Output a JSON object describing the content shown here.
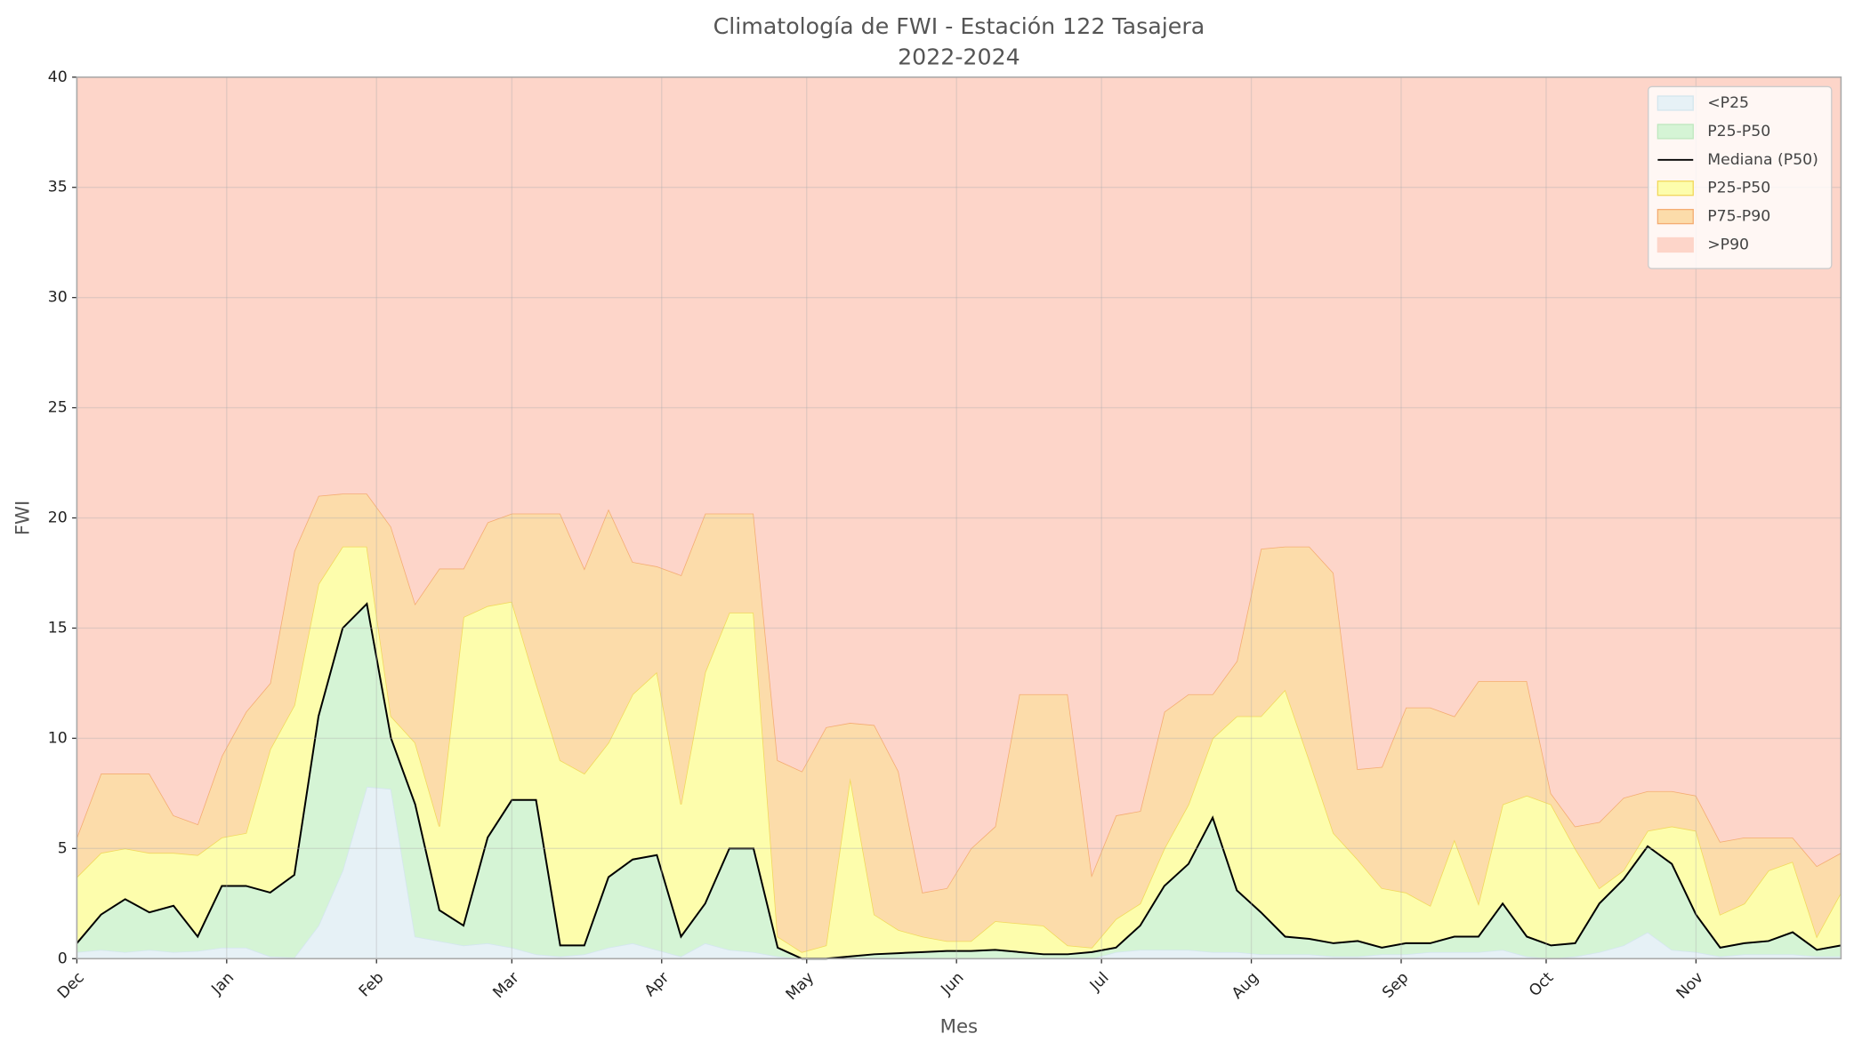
{
  "chart_data": {
    "type": "area",
    "title": "Climatología de FWI - Estación 122 Tasajera",
    "subtitle": "2022-2024",
    "x_label": "Mes",
    "y_label": "FWI",
    "x": [
      0,
      5,
      10,
      15,
      20,
      25,
      30,
      35,
      40,
      45,
      50,
      55,
      60,
      65,
      70,
      75,
      80,
      85,
      90,
      95,
      100,
      105,
      110,
      115,
      120,
      125,
      130,
      135,
      140,
      145,
      150,
      155,
      160,
      165,
      170,
      175,
      180,
      185,
      190,
      195,
      200,
      205,
      210,
      215,
      220,
      225,
      230,
      235,
      240,
      245,
      250,
      255,
      260,
      265,
      270,
      275,
      280,
      285,
      290,
      295,
      300,
      305,
      310,
      315,
      320,
      325,
      330,
      335,
      340,
      345,
      350,
      355,
      360,
      365
    ],
    "xlim": [
      0,
      365
    ],
    "xticks": [
      {
        "value": 0,
        "label": "Dec"
      },
      {
        "value": 31,
        "label": "Jan"
      },
      {
        "value": 62,
        "label": "Feb"
      },
      {
        "value": 90,
        "label": "Mar"
      },
      {
        "value": 121,
        "label": "Apr"
      },
      {
        "value": 151,
        "label": "May"
      },
      {
        "value": 182,
        "label": "Jun"
      },
      {
        "value": 212,
        "label": "Jul"
      },
      {
        "value": 243,
        "label": "Aug"
      },
      {
        "value": 274,
        "label": "Sep"
      },
      {
        "value": 304,
        "label": "Oct"
      },
      {
        "value": 335,
        "label": "Nov"
      }
    ],
    "ylim": [
      0,
      40
    ],
    "yticks": [
      0,
      5,
      10,
      15,
      20,
      25,
      30,
      35,
      40
    ],
    "grid": true,
    "legend": "upper right",
    "series": [
      {
        "name": "<P25",
        "kind": "area",
        "color": "#e6f1f6",
        "edge": "#d4e6ee",
        "values": [
          0.3,
          0.4,
          0.3,
          0.4,
          0.3,
          0.35,
          0.5,
          0.5,
          0.1,
          0.05,
          1.5,
          4.0,
          7.8,
          7.7,
          1.0,
          0.8,
          0.6,
          0.7,
          0.5,
          0.2,
          0.1,
          0.2,
          0.5,
          0.7,
          0.4,
          0.1,
          0.7,
          0.4,
          0.3,
          0.1,
          0,
          0,
          0,
          0,
          0,
          0,
          0,
          0,
          0,
          0,
          0,
          0,
          0,
          0.3,
          0.4,
          0.4,
          0.4,
          0.3,
          0.3,
          0.2,
          0.2,
          0.2,
          0.1,
          0.1,
          0.2,
          0.2,
          0.3,
          0.3,
          0.3,
          0.4,
          0.1,
          0,
          0.1,
          0.3,
          0.6,
          1.2,
          0.4,
          0.3,
          0.1,
          0.2,
          0.2,
          0.2,
          0.1,
          0.1
        ]
      },
      {
        "name": "P25-P50",
        "kind": "area",
        "color": "#d5f4d5",
        "edge": "#bfe8bf",
        "values": [
          0.7,
          2.0,
          2.7,
          2.1,
          2.4,
          1.0,
          3.3,
          3.3,
          3.0,
          3.8,
          11.0,
          15.0,
          16.1,
          10.0,
          7.0,
          2.2,
          1.5,
          5.5,
          7.2,
          7.2,
          0.6,
          0.6,
          3.7,
          4.5,
          4.7,
          1.0,
          2.5,
          5.0,
          5.0,
          0.5,
          0,
          0,
          0.1,
          0.2,
          0.25,
          0.3,
          0.35,
          0.35,
          0.4,
          0.3,
          0.2,
          0.2,
          0.3,
          0.5,
          1.5,
          3.3,
          4.3,
          6.4,
          3.1,
          2.1,
          1.0,
          0.9,
          0.7,
          0.8,
          0.5,
          0.7,
          0.7,
          1.0,
          1.0,
          2.5,
          1.0,
          0.6,
          0.7,
          2.5,
          3.6,
          5.1,
          4.3,
          2.0,
          0.5,
          0.7,
          0.8,
          1.2,
          0.4,
          0.6
        ]
      },
      {
        "name": "Mediana (P50)",
        "kind": "line",
        "color": "#000000",
        "values": [
          0.7,
          2.0,
          2.7,
          2.1,
          2.4,
          1.0,
          3.3,
          3.3,
          3.0,
          3.8,
          11.0,
          15.0,
          16.1,
          10.0,
          7.0,
          2.2,
          1.5,
          5.5,
          7.2,
          7.2,
          0.6,
          0.6,
          3.7,
          4.5,
          4.7,
          1.0,
          2.5,
          5.0,
          5.0,
          0.5,
          0,
          0,
          0.1,
          0.2,
          0.25,
          0.3,
          0.35,
          0.35,
          0.4,
          0.3,
          0.2,
          0.2,
          0.3,
          0.5,
          1.5,
          3.3,
          4.3,
          6.4,
          3.1,
          2.1,
          1.0,
          0.9,
          0.7,
          0.8,
          0.5,
          0.7,
          0.7,
          1.0,
          1.0,
          2.5,
          1.0,
          0.6,
          0.7,
          2.5,
          3.6,
          5.1,
          4.3,
          2.0,
          0.5,
          0.7,
          0.8,
          1.2,
          0.4,
          0.6
        ]
      },
      {
        "name": "P25-P50",
        "kind": "area",
        "color": "#fdfdac",
        "edge": "#f2d85c",
        "values": [
          3.7,
          4.8,
          5.0,
          4.8,
          4.8,
          4.7,
          5.5,
          5.7,
          9.5,
          11.5,
          17.0,
          18.7,
          18.7,
          11.0,
          9.8,
          6.0,
          15.5,
          16.0,
          16.2,
          12.5,
          9.0,
          8.4,
          9.8,
          12.0,
          13.0,
          7.0,
          13.0,
          15.7,
          15.7,
          1.0,
          0.3,
          0.6,
          8.2,
          2.0,
          1.3,
          1.0,
          0.8,
          0.8,
          1.7,
          1.6,
          1.5,
          0.6,
          0.5,
          1.8,
          2.5,
          5.0,
          7.0,
          10.0,
          11.0,
          11.0,
          12.2,
          9.0,
          5.7,
          4.5,
          3.2,
          3.0,
          2.4,
          5.4,
          2.5,
          7.0,
          7.4,
          7.0,
          5.0,
          3.2,
          4.0,
          5.8,
          6.0,
          5.8,
          2.0,
          2.5,
          4.0,
          4.4,
          1.0,
          3.0
        ]
      },
      {
        "name": "P75-P90",
        "kind": "area",
        "color": "#fcdcaa",
        "edge": "#f4ac72",
        "values": [
          5.5,
          8.4,
          8.4,
          8.4,
          6.5,
          6.1,
          9.2,
          11.2,
          12.5,
          18.5,
          21.0,
          21.1,
          21.1,
          19.6,
          16.1,
          17.7,
          17.7,
          19.8,
          20.2,
          20.2,
          20.2,
          17.7,
          20.4,
          18.0,
          17.8,
          17.4,
          20.2,
          20.2,
          20.2,
          9.0,
          8.5,
          10.5,
          10.7,
          10.6,
          8.5,
          3.0,
          3.2,
          5.0,
          6.0,
          12.0,
          12.0,
          12.0,
          3.8,
          6.5,
          6.7,
          11.2,
          12.0,
          12.0,
          13.5,
          18.6,
          18.7,
          18.7,
          17.5,
          8.6,
          8.7,
          11.4,
          11.4,
          11.0,
          12.6,
          12.6,
          12.6,
          7.5,
          6.0,
          6.2,
          7.3,
          7.6,
          7.6,
          7.4,
          5.3,
          5.5,
          5.5,
          5.5,
          4.2,
          4.8
        ]
      },
      {
        "name": ">P90",
        "kind": "area",
        "color": "#fdd5c9",
        "edge": "#fdd5c9"
      }
    ]
  }
}
